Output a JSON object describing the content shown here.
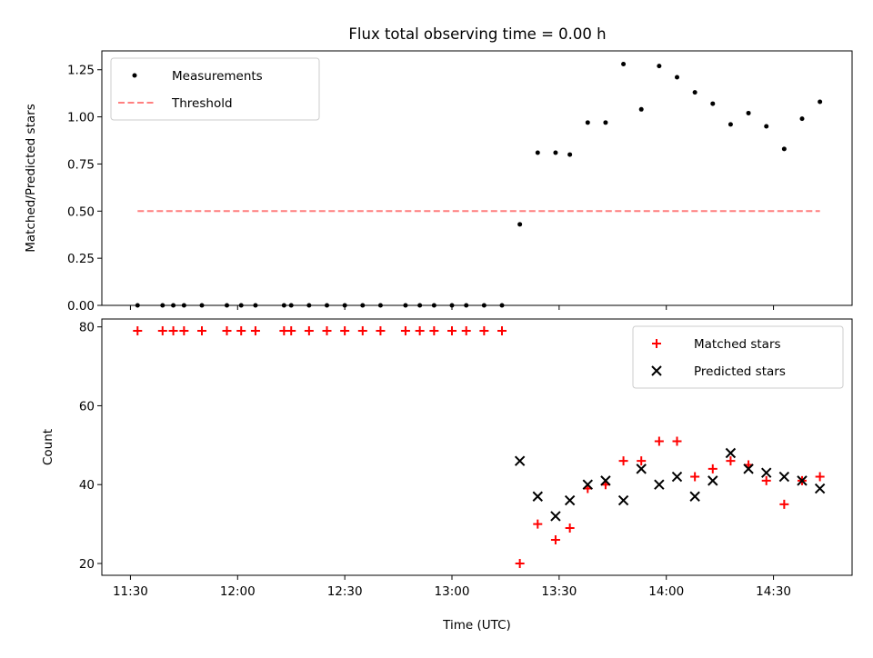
{
  "title": "Flux total observing time = 0.00 h",
  "colors": {
    "measurement": "#000000",
    "threshold": "#ff7f7f",
    "matched": "#ff0000",
    "predicted": "#000000"
  },
  "chart_data": [
    {
      "type": "scatter",
      "title": "Flux total observing time = 0.00 h",
      "xlabel": "",
      "ylabel": "Matched/Predicted stars",
      "xlim": [
        "11:22",
        "14:52"
      ],
      "ylim": [
        0,
        1.35
      ],
      "yticks": [
        "0.00",
        "0.25",
        "0.50",
        "0.75",
        "1.00",
        "1.25"
      ],
      "xticks": [
        "11:30",
        "12:00",
        "12:30",
        "13:00",
        "13:30",
        "14:00",
        "14:30"
      ],
      "legend": {
        "placement": "top-left",
        "items": [
          {
            "label": "Measurements",
            "marker": "dot"
          },
          {
            "label": "Threshold",
            "marker": "dashed-line"
          }
        ]
      },
      "series": [
        {
          "name": "Measurements",
          "points": [
            [
              "11:32",
              0
            ],
            [
              "11:39",
              0
            ],
            [
              "11:42",
              0
            ],
            [
              "11:45",
              0
            ],
            [
              "11:50",
              0
            ],
            [
              "11:57",
              0
            ],
            [
              "12:01",
              0
            ],
            [
              "12:05",
              0
            ],
            [
              "12:13",
              0
            ],
            [
              "12:15",
              0
            ],
            [
              "12:20",
              0
            ],
            [
              "12:25",
              0
            ],
            [
              "12:30",
              0
            ],
            [
              "12:35",
              0
            ],
            [
              "12:40",
              0
            ],
            [
              "12:47",
              0
            ],
            [
              "12:51",
              0
            ],
            [
              "12:55",
              0
            ],
            [
              "13:00",
              0
            ],
            [
              "13:04",
              0
            ],
            [
              "13:09",
              0
            ],
            [
              "13:14",
              0
            ],
            [
              "13:19",
              0.43
            ],
            [
              "13:24",
              0.81
            ],
            [
              "13:29",
              0.81
            ],
            [
              "13:33",
              0.8
            ],
            [
              "13:38",
              0.97
            ],
            [
              "13:43",
              0.97
            ],
            [
              "13:48",
              1.28
            ],
            [
              "13:53",
              1.04
            ],
            [
              "13:58",
              1.27
            ],
            [
              "14:03",
              1.21
            ],
            [
              "14:08",
              1.13
            ],
            [
              "14:13",
              1.07
            ],
            [
              "14:18",
              0.96
            ],
            [
              "14:23",
              1.02
            ],
            [
              "14:28",
              0.95
            ],
            [
              "14:33",
              0.83
            ],
            [
              "14:38",
              0.99
            ],
            [
              "14:43",
              1.08
            ]
          ]
        },
        {
          "name": "Threshold",
          "points": [
            [
              "11:32",
              0.5
            ],
            [
              "14:43",
              0.5
            ]
          ]
        }
      ]
    },
    {
      "type": "scatter",
      "title": "",
      "xlabel": "Time (UTC)",
      "ylabel": "Count",
      "xlim": [
        "11:22",
        "14:52"
      ],
      "ylim": [
        17,
        82
      ],
      "yticks": [
        "20",
        "40",
        "60",
        "80"
      ],
      "xticks": [
        "11:30",
        "12:00",
        "12:30",
        "13:00",
        "13:30",
        "14:00",
        "14:30"
      ],
      "legend": {
        "placement": "top-right",
        "items": [
          {
            "label": "Matched stars",
            "marker": "plus"
          },
          {
            "label": "Predicted stars",
            "marker": "x"
          }
        ]
      },
      "series": [
        {
          "name": "Matched stars",
          "points": [
            [
              "11:32",
              79
            ],
            [
              "11:39",
              79
            ],
            [
              "11:42",
              79
            ],
            [
              "11:45",
              79
            ],
            [
              "11:50",
              79
            ],
            [
              "11:57",
              79
            ],
            [
              "12:01",
              79
            ],
            [
              "12:05",
              79
            ],
            [
              "12:13",
              79
            ],
            [
              "12:15",
              79
            ],
            [
              "12:20",
              79
            ],
            [
              "12:25",
              79
            ],
            [
              "12:30",
              79
            ],
            [
              "12:35",
              79
            ],
            [
              "12:40",
              79
            ],
            [
              "12:47",
              79
            ],
            [
              "12:51",
              79
            ],
            [
              "12:55",
              79
            ],
            [
              "13:00",
              79
            ],
            [
              "13:04",
              79
            ],
            [
              "13:09",
              79
            ],
            [
              "13:14",
              79
            ],
            [
              "13:19",
              20
            ],
            [
              "13:24",
              30
            ],
            [
              "13:29",
              26
            ],
            [
              "13:33",
              29
            ],
            [
              "13:38",
              39
            ],
            [
              "13:43",
              40
            ],
            [
              "13:48",
              46
            ],
            [
              "13:53",
              46
            ],
            [
              "13:58",
              51
            ],
            [
              "14:03",
              51
            ],
            [
              "14:08",
              42
            ],
            [
              "14:13",
              44
            ],
            [
              "14:18",
              46
            ],
            [
              "14:23",
              45
            ],
            [
              "14:28",
              41
            ],
            [
              "14:33",
              35
            ],
            [
              "14:38",
              41
            ],
            [
              "14:43",
              42
            ]
          ]
        },
        {
          "name": "Predicted stars",
          "points": [
            [
              "13:19",
              46
            ],
            [
              "13:24",
              37
            ],
            [
              "13:29",
              32
            ],
            [
              "13:33",
              36
            ],
            [
              "13:38",
              40
            ],
            [
              "13:43",
              41
            ],
            [
              "13:48",
              36
            ],
            [
              "13:53",
              44
            ],
            [
              "13:58",
              40
            ],
            [
              "14:03",
              42
            ],
            [
              "14:08",
              37
            ],
            [
              "14:13",
              41
            ],
            [
              "14:18",
              48
            ],
            [
              "14:23",
              44
            ],
            [
              "14:28",
              43
            ],
            [
              "14:33",
              42
            ],
            [
              "14:38",
              41
            ],
            [
              "14:43",
              39
            ]
          ]
        }
      ]
    }
  ]
}
